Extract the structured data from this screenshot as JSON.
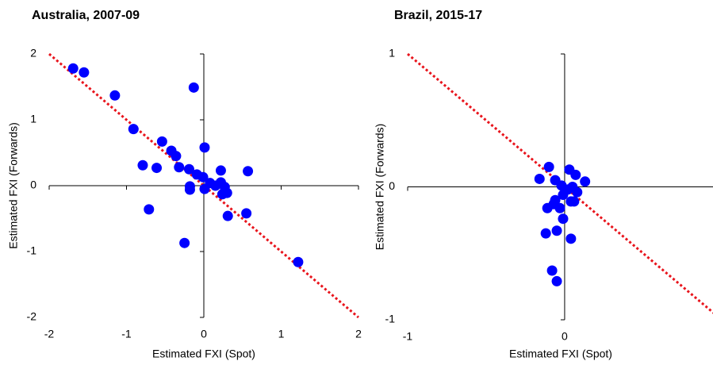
{
  "chart_data": [
    {
      "type": "scatter",
      "title": "Australia, 2007-09",
      "x_label": "Estimated FXI (Spot)",
      "y_label": "Estimated FXI (Forwards)",
      "xlim": [
        -2,
        2
      ],
      "ylim": [
        -2,
        2
      ],
      "xticks": [
        -2,
        -1,
        0,
        1,
        2
      ],
      "yticks": [
        -2,
        -1,
        0,
        1,
        2
      ],
      "reference_line": {
        "slope": -1,
        "intercept": 0,
        "color": "#e8141c"
      },
      "series": [
        {
          "color": "#0000ff",
          "x": [
            -1.69,
            -1.55,
            -1.15,
            -0.13,
            -0.91,
            -0.54,
            -0.42,
            -0.36,
            0.01,
            -0.79,
            -0.61,
            -0.32,
            -0.19,
            -0.09,
            -0.01,
            0.22,
            0.57,
            -0.18,
            -0.18,
            0.01,
            0.08,
            0.15,
            0.22,
            0.27,
            0.3,
            0.24,
            0.31,
            0.55,
            -0.71,
            -0.25,
            1.22
          ],
          "y": [
            1.78,
            1.72,
            1.37,
            1.49,
            0.86,
            0.67,
            0.53,
            0.45,
            0.58,
            0.31,
            0.27,
            0.28,
            0.25,
            0.17,
            0.13,
            0.23,
            0.22,
            -0.01,
            -0.06,
            -0.05,
            0.04,
            0.0,
            0.05,
            -0.02,
            -0.11,
            -0.13,
            -0.46,
            -0.42,
            -0.36,
            -0.87,
            -1.16
          ]
        }
      ]
    },
    {
      "type": "scatter",
      "title": "Brazil, 2015-17",
      "x_label": "Estimated FXI (Spot)",
      "y_label": "Estimated FXI (Forwards)",
      "xlim": [
        -1,
        0.95
      ],
      "ylim": [
        -1,
        1
      ],
      "xticks": [
        -1,
        0
      ],
      "yticks": [
        -1,
        0,
        1
      ],
      "reference_line": {
        "slope": -1,
        "intercept": 0,
        "color": "#e8141c"
      },
      "series": [
        {
          "color": "#0000ff",
          "x": [
            -0.16,
            -0.1,
            0.03,
            0.07,
            0.13,
            -0.06,
            -0.02,
            0.02,
            0.05,
            0.08,
            -0.01,
            -0.06,
            -0.11,
            -0.07,
            -0.03,
            -0.01,
            0.04,
            0.06,
            -0.12,
            -0.05,
            0.04,
            -0.08,
            -0.05
          ],
          "y": [
            0.06,
            0.15,
            0.13,
            0.09,
            0.04,
            0.05,
            0.01,
            -0.02,
            0.0,
            -0.04,
            -0.06,
            -0.1,
            -0.16,
            -0.13,
            -0.16,
            -0.24,
            -0.11,
            -0.11,
            -0.35,
            -0.33,
            -0.39,
            -0.63,
            -0.71
          ]
        }
      ]
    }
  ]
}
